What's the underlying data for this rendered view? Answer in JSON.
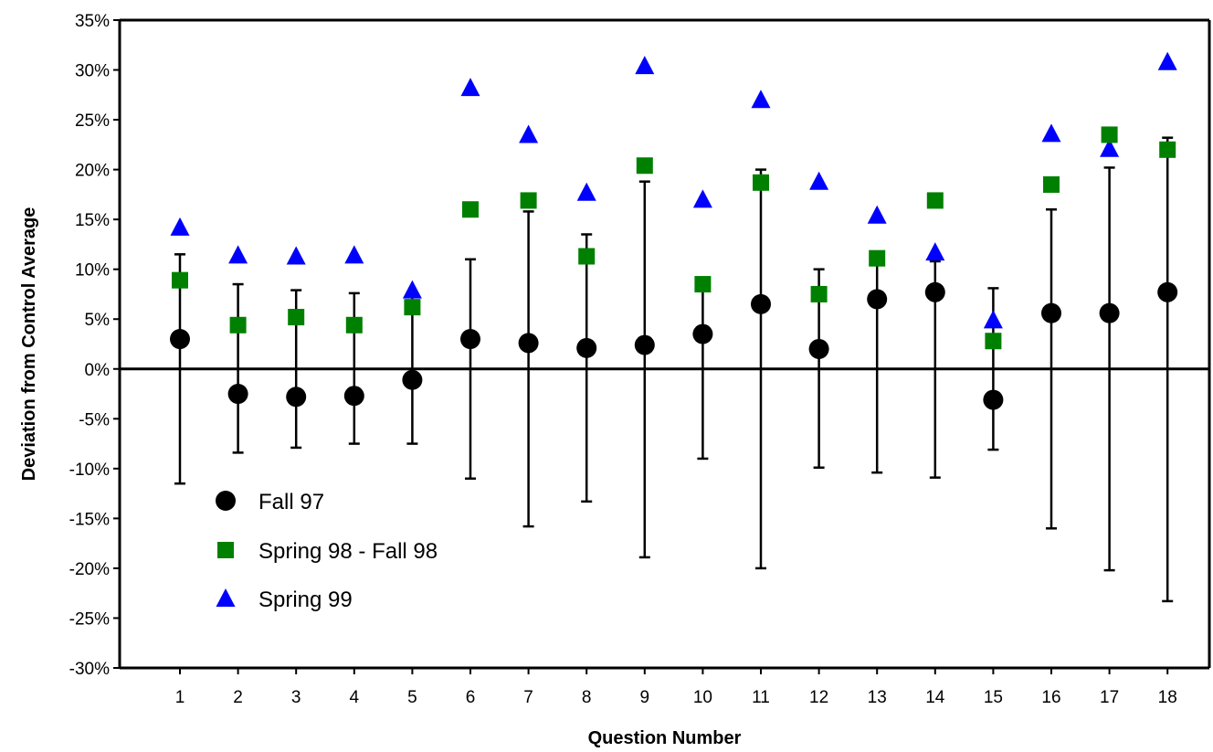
{
  "chart_data": {
    "type": "scatter",
    "title": "",
    "xlabel": "Question Number",
    "ylabel": "Deviation from Control Average",
    "categories": [
      "1",
      "2",
      "3",
      "4",
      "5",
      "6",
      "7",
      "8",
      "9",
      "10",
      "11",
      "12",
      "13",
      "14",
      "15",
      "16",
      "17",
      "18"
    ],
    "ylim": [
      -30,
      35
    ],
    "yticks": [
      35,
      30,
      25,
      20,
      15,
      10,
      5,
      0,
      -5,
      -10,
      -15,
      -20,
      -25,
      -30
    ],
    "ytick_labels": [
      "35%",
      "30%",
      "25%",
      "20%",
      "15%",
      "10%",
      "5%",
      "0%",
      "-5%",
      "-10%",
      "-15%",
      "-20%",
      "-25%",
      "-30%"
    ],
    "grid": false,
    "legend_position": "bottom-left",
    "series": [
      {
        "name": "Fall 97",
        "marker": "circle",
        "color": "#000000",
        "values": [
          3.0,
          -2.5,
          -2.8,
          -2.7,
          -1.1,
          3.0,
          2.6,
          2.1,
          2.4,
          3.5,
          6.5,
          2.0,
          7.0,
          7.7,
          -3.1,
          5.6,
          5.6,
          7.7
        ],
        "error_low": [
          -11.5,
          -8.4,
          -7.9,
          -7.5,
          -7.5,
          -11.0,
          -15.8,
          -13.3,
          -18.9,
          -9.0,
          -20.0,
          -9.9,
          -10.4,
          -10.9,
          -8.1,
          -16.0,
          -20.2,
          -23.3
        ],
        "error_high": [
          11.5,
          8.5,
          7.9,
          7.6,
          7.6,
          11.0,
          15.8,
          13.5,
          18.8,
          9.0,
          20.0,
          10.0,
          10.5,
          10.8,
          8.1,
          16.0,
          20.2,
          23.2
        ]
      },
      {
        "name": "Spring 98 - Fall 98",
        "marker": "square",
        "color": "#008000",
        "values": [
          8.9,
          4.4,
          5.2,
          4.4,
          6.2,
          16.0,
          16.9,
          11.3,
          20.4,
          8.5,
          18.7,
          7.5,
          11.1,
          16.9,
          2.8,
          18.5,
          23.5,
          22.0
        ]
      },
      {
        "name": "Spring 99",
        "marker": "triangle",
        "color": "#0000ff",
        "values": [
          14.2,
          11.4,
          11.3,
          11.4,
          7.9,
          28.2,
          23.5,
          17.7,
          30.4,
          17.0,
          27.0,
          18.8,
          15.4,
          11.7,
          4.9,
          23.6,
          22.1,
          30.8
        ]
      }
    ]
  }
}
